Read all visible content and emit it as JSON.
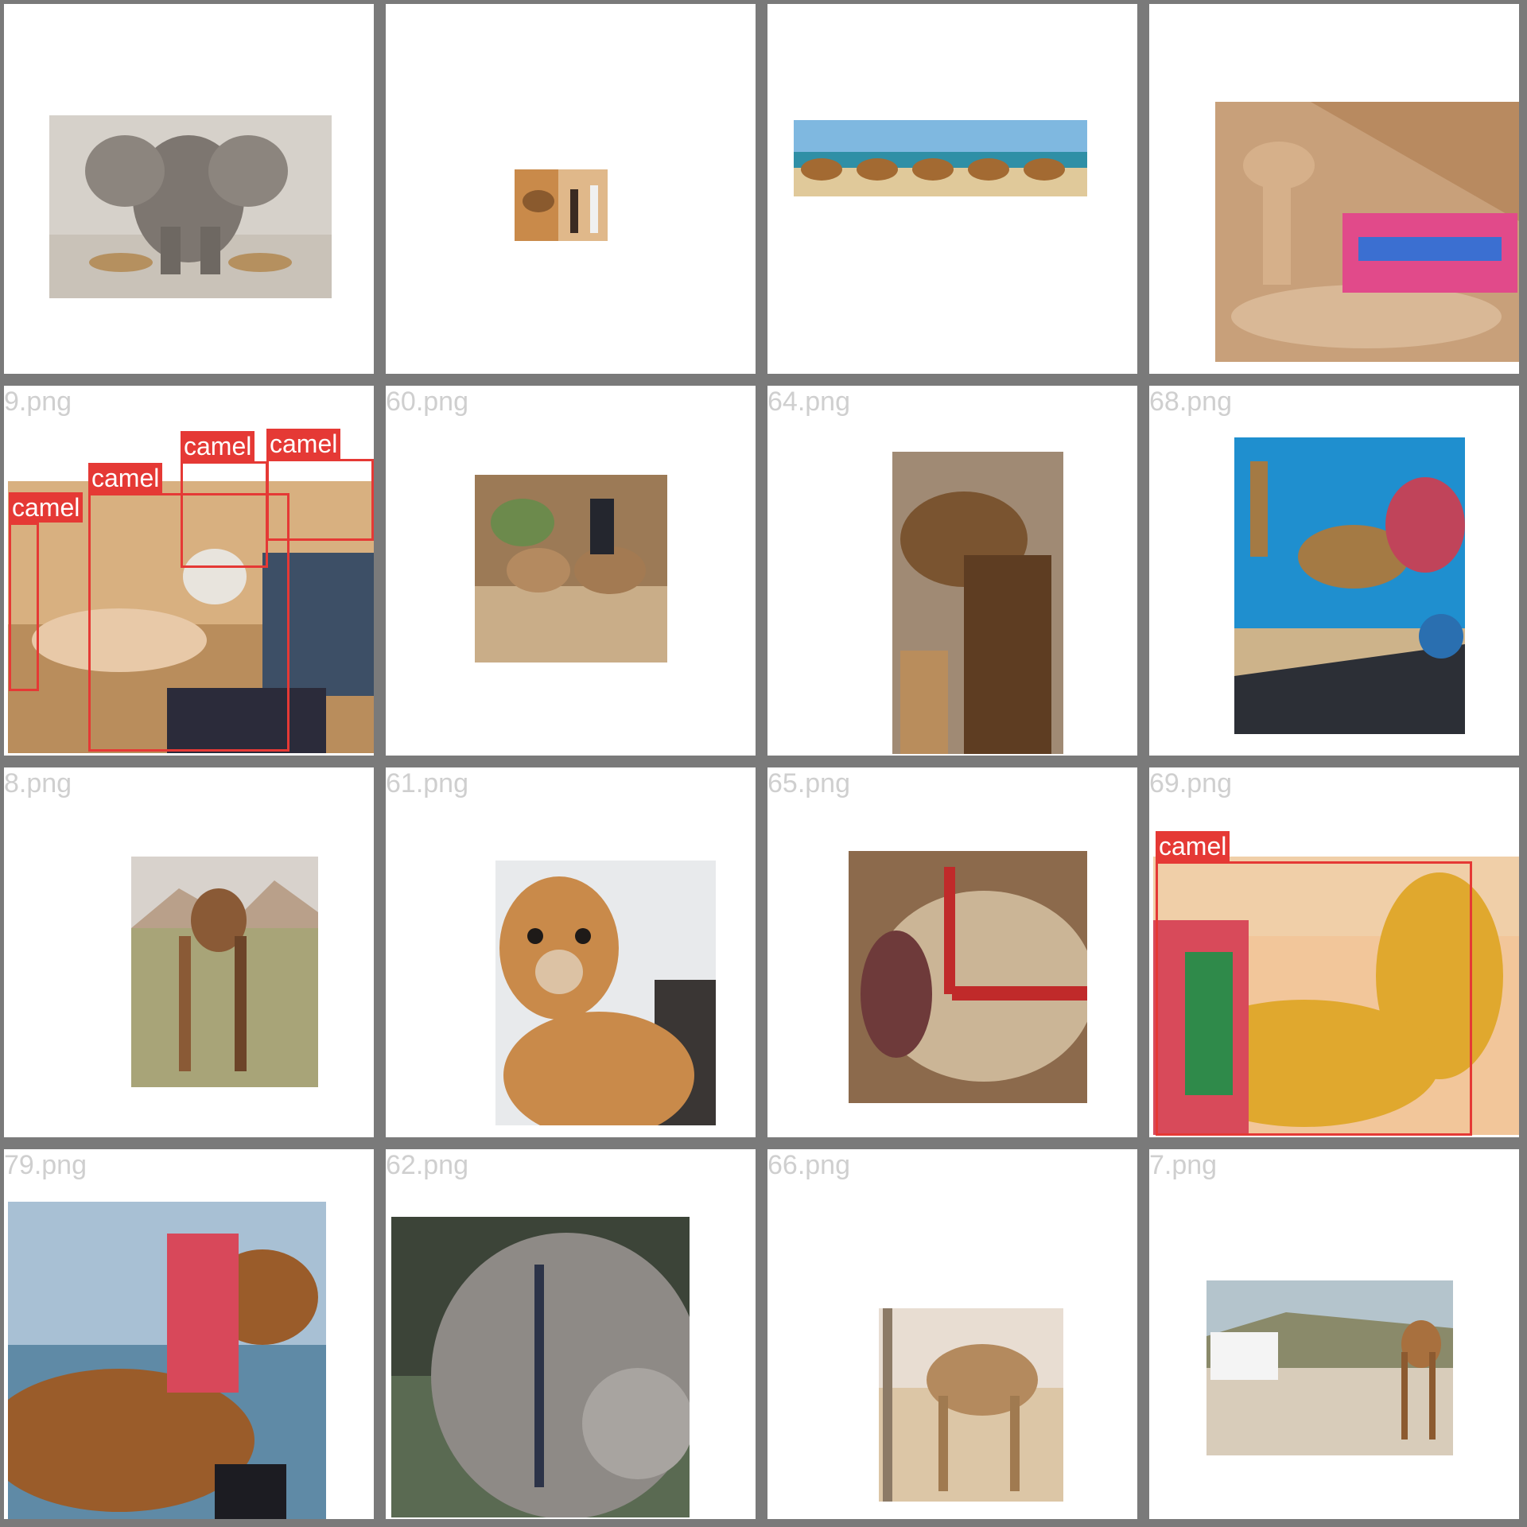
{
  "grid": {
    "columns": 4,
    "rows": 4,
    "border_color": "#7a7a7a",
    "box_color": "#e53935",
    "cells": [
      {
        "filename": "",
        "content": "elephant with two gazelles fighting on dry plain",
        "boxes": []
      },
      {
        "filename": "",
        "content": "small photo of camel and two people in desert",
        "boxes": []
      },
      {
        "filename": "",
        "content": "line of riders on camels along a beach",
        "boxes": []
      },
      {
        "filename": "",
        "content": "decorated camel with colorful saddle resting near pyramid",
        "boxes": []
      },
      {
        "filename": "9.png",
        "content": "hand feeding camels with colorful tassels",
        "boxes": [
          {
            "label": "camel"
          },
          {
            "label": "camel"
          },
          {
            "label": "camel"
          },
          {
            "label": "camel"
          }
        ]
      },
      {
        "filename": "60.png",
        "content": "rider on camel with second camel in rocky landscape",
        "boxes": []
      },
      {
        "filename": "64.png",
        "content": "close-up of brown camel head among bare trees",
        "boxes": []
      },
      {
        "filename": "68.png",
        "content": "camel pulling a cart under blue sky",
        "boxes": []
      },
      {
        "filename": "8.png",
        "content": "camel grazing in grassy field with mountains",
        "boxes": []
      },
      {
        "filename": "61.png",
        "content": "fluffy alpaca face close-up",
        "boxes": []
      },
      {
        "filename": "65.png",
        "content": "camel with open mouth wearing red halter",
        "boxes": []
      },
      {
        "filename": "69.png",
        "content": "highly decorated camel with colorful tassels",
        "boxes": [
          {
            "label": "camel"
          }
        ]
      },
      {
        "filename": "79.png",
        "content": "decorated camel head by the sea",
        "boxes": []
      },
      {
        "filename": "62.png",
        "content": "grey camel face with rope halter",
        "boxes": []
      },
      {
        "filename": "66.png",
        "content": "single camel standing in desert",
        "boxes": []
      },
      {
        "filename": "7.png",
        "content": "two camels and a white SUV on dirt road",
        "boxes": []
      }
    ]
  }
}
